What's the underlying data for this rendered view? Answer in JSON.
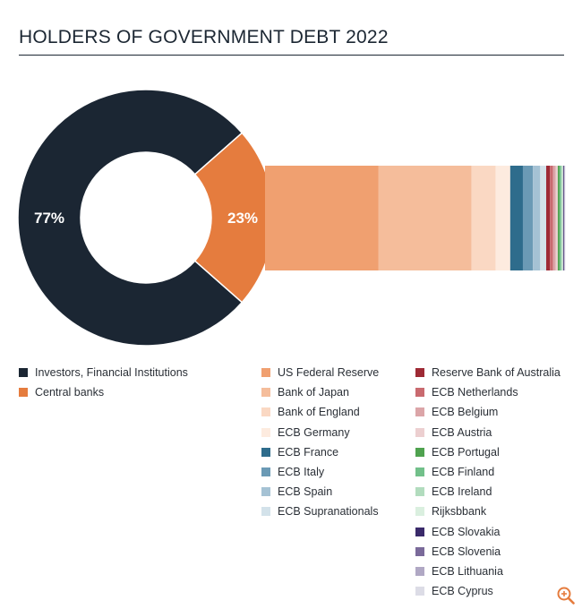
{
  "title": "HOLDERS OF GOVERNMENT DEBT 2022",
  "chart_data": {
    "type": "pie",
    "subtype": "donut-with-breakdown-bar",
    "slices": [
      {
        "name": "Investors, Financial Institutions",
        "value": 77,
        "label": "77%",
        "color": "#1b2633"
      },
      {
        "name": "Central banks",
        "value": 23,
        "label": "23%",
        "color": "#e57c3e"
      }
    ],
    "breakdown": {
      "of": "Central banks",
      "type": "stacked-bar",
      "segments": [
        {
          "name": "US Federal Reserve",
          "value": 8.5,
          "color": "#f0a070"
        },
        {
          "name": "Bank of Japan",
          "value": 7.0,
          "color": "#f5bd9b"
        },
        {
          "name": "Bank of England",
          "value": 1.8,
          "color": "#fad8c3"
        },
        {
          "name": "ECB Germany",
          "value": 1.1,
          "color": "#fdebdf"
        },
        {
          "name": "ECB France",
          "value": 0.95,
          "color": "#2e6c8c"
        },
        {
          "name": "ECB Italy",
          "value": 0.75,
          "color": "#6b9ab5"
        },
        {
          "name": "ECB Spain",
          "value": 0.55,
          "color": "#a5c2d4"
        },
        {
          "name": "ECB Supranationals",
          "value": 0.45,
          "color": "#d3e2ea"
        },
        {
          "name": "Reserve Bank of Australia",
          "value": 0.28,
          "color": "#9e2a35"
        },
        {
          "name": "ECB Netherlands",
          "value": 0.24,
          "color": "#c96a6f"
        },
        {
          "name": "ECB Belgium",
          "value": 0.2,
          "color": "#dba5a8"
        },
        {
          "name": "ECB Austria",
          "value": 0.15,
          "color": "#eccfd0"
        },
        {
          "name": "ECB Portugal",
          "value": 0.13,
          "color": "#4fa24f"
        },
        {
          "name": "ECB Finland",
          "value": 0.11,
          "color": "#72c08a"
        },
        {
          "name": "ECB Ireland",
          "value": 0.09,
          "color": "#b2dcbe"
        },
        {
          "name": "Rijksbbank",
          "value": 0.07,
          "color": "#daefdf"
        },
        {
          "name": "ECB Slovakia",
          "value": 0.05,
          "color": "#3a2a6a"
        },
        {
          "name": "ECB Slovenia",
          "value": 0.04,
          "color": "#7a6a9a"
        },
        {
          "name": "ECB Lithuania",
          "value": 0.03,
          "color": "#b0a8c4"
        },
        {
          "name": "ECB Cyprus",
          "value": 0.02,
          "color": "#dcdce6"
        }
      ]
    },
    "legend_placement": "bottom"
  },
  "icons": {
    "zoom": "zoom-in-icon"
  }
}
